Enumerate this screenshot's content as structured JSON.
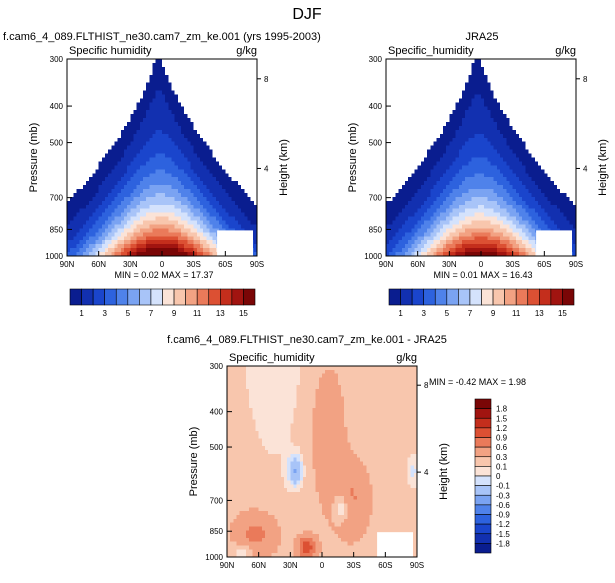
{
  "page_title": "DJF",
  "chart_data": [
    {
      "type": "heatmap",
      "title": "f.cam6_4_089.FLTHIST_ne30.cam7_zm_ke.001 (yrs 1995-2003)",
      "variable": "Specific humidity",
      "units": "g/kg",
      "ylabel": "Pressure (mb)",
      "ylabel_right": "Height (km)",
      "x_ticks": [
        "90N",
        "60N",
        "30N",
        "0",
        "30S",
        "60S",
        "90S"
      ],
      "y_ticks": [
        "300",
        "400",
        "500",
        "700",
        "850",
        "1000"
      ],
      "y_ticks_right": [
        "8",
        "4"
      ],
      "stats": "MIN =   0.02  MAX =  17.37",
      "colorbar_labels": [
        "1",
        "3",
        "5",
        "7",
        "9",
        "11",
        "13",
        "15"
      ],
      "peak": 17.37,
      "skew": 0
    },
    {
      "type": "heatmap",
      "title": "JRA25",
      "variable": "Specific_humidity",
      "units": "g/kg",
      "ylabel": "Pressure (mb)",
      "ylabel_right": "Height (km)",
      "x_ticks": [
        "90N",
        "60N",
        "30N",
        "0",
        "30S",
        "60S",
        "90S"
      ],
      "y_ticks": [
        "300",
        "400",
        "500",
        "700",
        "850",
        "1000"
      ],
      "y_ticks_right": [
        "8",
        "4"
      ],
      "stats": "MIN =   0.01  MAX =  16.43",
      "colorbar_labels": [
        "1",
        "3",
        "5",
        "7",
        "9",
        "11",
        "13",
        "15"
      ],
      "peak": 16.43,
      "skew": 0
    },
    {
      "type": "heatmap",
      "title": "f.cam6_4_089.FLTHIST_ne30.cam7_zm_ke.001 - JRA25",
      "variable": "Specific_humidity",
      "units": "g/kg",
      "ylabel": "Pressure (mb)",
      "ylabel_right": "Height (km)",
      "x_ticks": [
        "90N",
        "60N",
        "30N",
        "0",
        "30S",
        "60S",
        "90S"
      ],
      "y_ticks": [
        "300",
        "400",
        "500",
        "700",
        "850",
        "1000"
      ],
      "y_ticks_right": [
        "8",
        "4"
      ],
      "stats": "MIN =  -0.42   MAX =   1.98",
      "colorbar_labels": [
        "1.8",
        "1.5",
        "1.2",
        "0.9",
        "0.6",
        "0.3",
        "0.1",
        "0",
        "-0.1",
        "-0.3",
        "-0.6",
        "-0.9",
        "-1.2",
        "-1.5",
        "-1.8"
      ]
    }
  ],
  "colors": {
    "seq": [
      "#0a1d8f",
      "#1230b0",
      "#1a45cc",
      "#2d62de",
      "#4f82ea",
      "#7aa3f2",
      "#a8c4f8",
      "#d4e2fc",
      "#fbe3d7",
      "#f8c6ad",
      "#f2a283",
      "#ea7a5a",
      "#dc5033",
      "#c42e1c",
      "#a11410",
      "#7a0606"
    ],
    "div": [
      "#0a1d8f",
      "#1230b0",
      "#1a45cc",
      "#2d62de",
      "#4f82ea",
      "#7aa3f2",
      "#a8c4f8",
      "#d4e2fc",
      "#fbe3d7",
      "#f8c6ad",
      "#f2a283",
      "#ea7a5a",
      "#dc5033",
      "#c42e1c",
      "#a11410",
      "#7a0606"
    ]
  }
}
